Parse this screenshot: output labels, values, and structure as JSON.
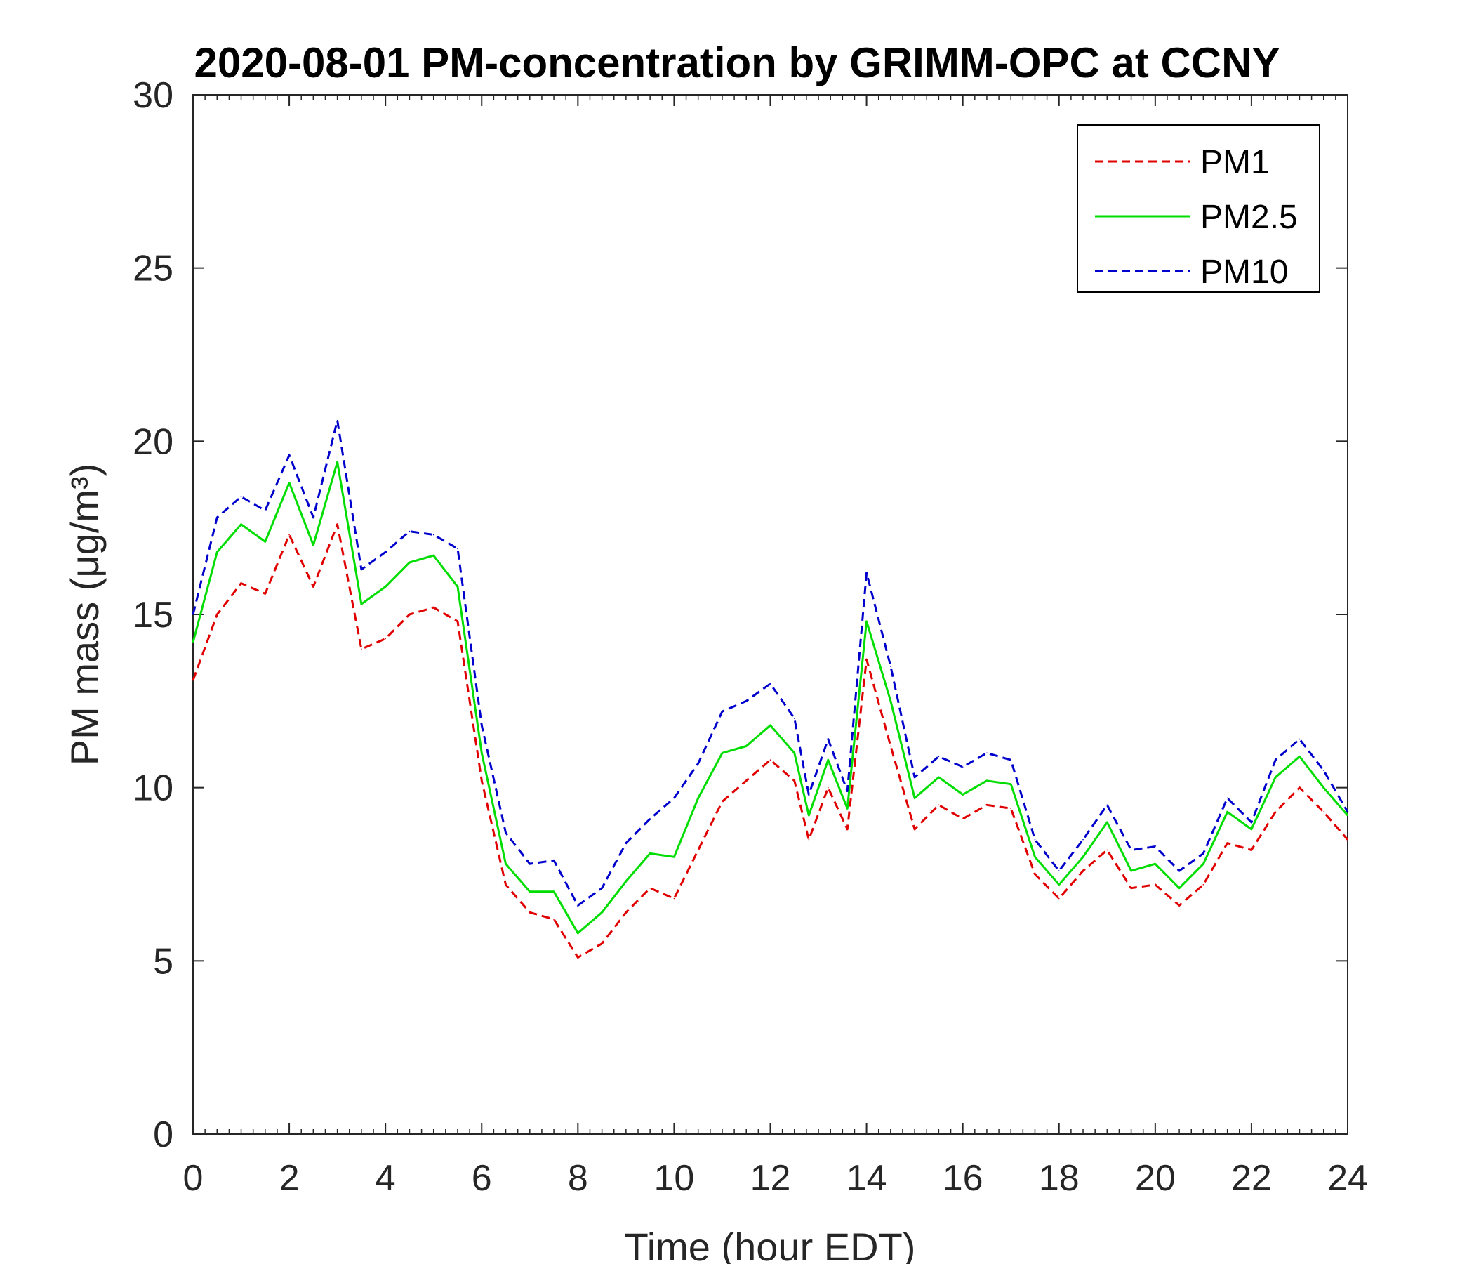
{
  "chart_data": {
    "type": "line",
    "title": "2020-08-01 PM-concentration by GRIMM-OPC at CCNY",
    "xlabel": "Time (hour EDT)",
    "ylabel": "PM mass (μg/m³)",
    "xlim": [
      0,
      24
    ],
    "ylim": [
      0,
      30
    ],
    "xticks": [
      0,
      2,
      4,
      6,
      8,
      10,
      12,
      14,
      16,
      18,
      20,
      22,
      24
    ],
    "yticks": [
      0,
      5,
      10,
      15,
      20,
      25,
      30
    ],
    "grid": false,
    "legend_position": "top-right",
    "x": [
      0,
      0.5,
      1,
      1.5,
      2,
      2.5,
      3,
      3.5,
      4,
      4.5,
      5,
      5.5,
      6,
      6.5,
      7,
      7.5,
      8,
      8.5,
      9,
      9.5,
      10,
      10.5,
      11,
      11.5,
      12,
      12.5,
      12.8,
      13.2,
      13.6,
      14,
      14.5,
      15,
      15.5,
      16,
      16.5,
      17,
      17.5,
      18,
      18.5,
      19,
      19.5,
      20,
      20.5,
      21,
      21.5,
      22,
      22.5,
      23,
      23.5,
      24
    ],
    "series": [
      {
        "name": "PM1",
        "color": "#e00000",
        "dash": "dashed",
        "values": [
          13.1,
          15.0,
          15.9,
          15.6,
          17.3,
          15.8,
          17.6,
          14.0,
          14.3,
          15.0,
          15.2,
          14.8,
          10.2,
          7.2,
          6.4,
          6.2,
          5.1,
          5.5,
          6.4,
          7.1,
          6.8,
          8.2,
          9.6,
          10.2,
          10.8,
          10.2,
          8.5,
          10.0,
          8.8,
          13.7,
          11.2,
          8.8,
          9.5,
          9.1,
          9.5,
          9.4,
          7.5,
          6.8,
          7.6,
          8.2,
          7.1,
          7.2,
          6.6,
          7.2,
          8.4,
          8.2,
          9.3,
          10.0,
          9.3,
          8.5
        ]
      },
      {
        "name": "PM2.5",
        "color": "#00dd00",
        "dash": "solid",
        "values": [
          14.2,
          16.8,
          17.6,
          17.1,
          18.8,
          17.0,
          19.4,
          15.3,
          15.8,
          16.5,
          16.7,
          15.8,
          11.0,
          7.8,
          7.0,
          7.0,
          5.8,
          6.4,
          7.3,
          8.1,
          8.0,
          9.7,
          11.0,
          11.2,
          11.8,
          11.0,
          9.2,
          10.8,
          9.4,
          14.8,
          12.5,
          9.7,
          10.3,
          9.8,
          10.2,
          10.1,
          8.0,
          7.2,
          8.0,
          9.0,
          7.6,
          7.8,
          7.1,
          7.8,
          9.3,
          8.8,
          10.3,
          10.9,
          10.0,
          9.2
        ]
      },
      {
        "name": "PM10",
        "color": "#0000cc",
        "dash": "dashed",
        "values": [
          15.0,
          17.8,
          18.4,
          18.0,
          19.6,
          17.8,
          20.6,
          16.3,
          16.8,
          17.4,
          17.3,
          16.9,
          11.8,
          8.7,
          7.8,
          7.9,
          6.6,
          7.1,
          8.4,
          9.1,
          9.7,
          10.7,
          12.2,
          12.5,
          13.0,
          12.0,
          9.8,
          11.4,
          9.9,
          16.2,
          13.5,
          10.3,
          10.9,
          10.6,
          11.0,
          10.8,
          8.5,
          7.6,
          8.5,
          9.5,
          8.2,
          8.3,
          7.6,
          8.1,
          9.7,
          9.0,
          10.8,
          11.4,
          10.5,
          9.3
        ]
      }
    ]
  }
}
